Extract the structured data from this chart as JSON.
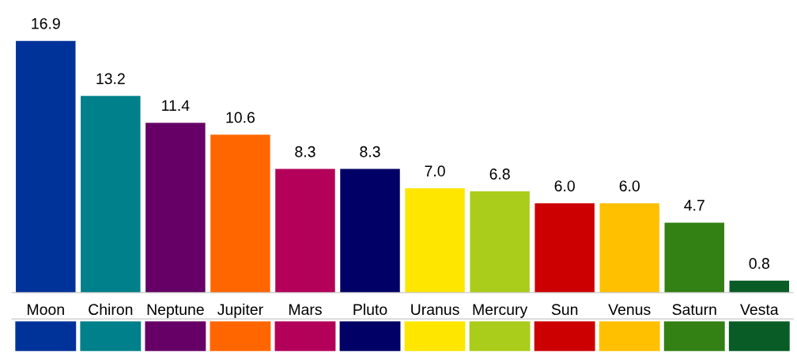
{
  "chart_data": {
    "type": "bar",
    "categories": [
      "Moon",
      "Chiron",
      "Neptune",
      "Jupiter",
      "Mars",
      "Pluto",
      "Uranus",
      "Mercury",
      "Sun",
      "Venus",
      "Saturn",
      "Vesta"
    ],
    "values": [
      16.9,
      13.2,
      11.4,
      10.6,
      8.3,
      8.3,
      7.0,
      6.8,
      6.0,
      6.0,
      4.7,
      0.8
    ],
    "colors": [
      "#003399",
      "#00808a",
      "#660066",
      "#ff6600",
      "#b30059",
      "#000066",
      "#ffe600",
      "#aacc1a",
      "#cc0000",
      "#ffc000",
      "#338015",
      "#0a5c26"
    ],
    "value_labels": [
      "16.9",
      "13.2",
      "11.4",
      "10.6",
      "8.3",
      "8.3",
      "7.0",
      "6.8",
      "6.0",
      "6.0",
      "4.7",
      "0.8"
    ],
    "grid": false
  }
}
